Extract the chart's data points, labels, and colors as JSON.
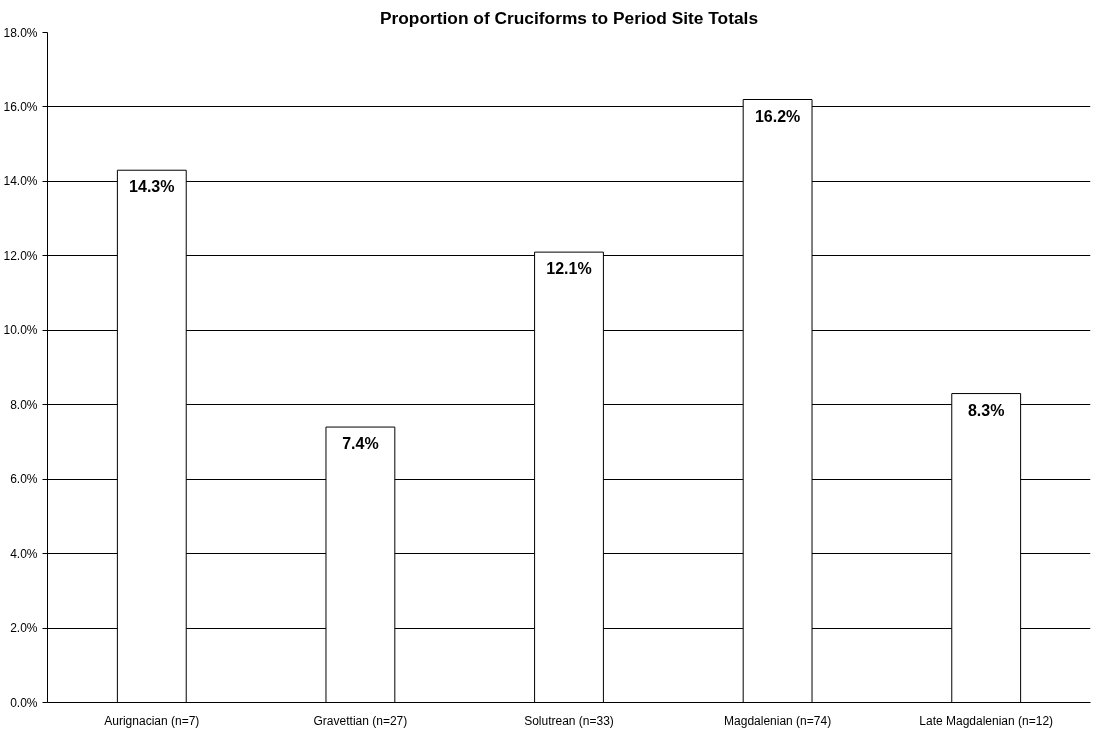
{
  "chart_data": {
    "type": "bar",
    "title": "Proportion of Cruciforms to Period Site Totals",
    "categories": [
      "Aurignacian (n=7)",
      "Gravettian (n=27)",
      "Solutrean (n=33)",
      "Magdalenian (n=74)",
      "Late Magdalenian (n=12)"
    ],
    "values": [
      14.3,
      7.4,
      12.1,
      16.2,
      8.3
    ],
    "value_labels": [
      "14.3%",
      "7.4%",
      "12.1%",
      "16.2%",
      "8.3%"
    ],
    "color": "#ffffff",
    "ylim": [
      0,
      18
    ],
    "yticks": [
      {
        "value": 0,
        "label": "0.0%"
      },
      {
        "value": 2,
        "label": "2.0%"
      },
      {
        "value": 4,
        "label": "4.0%"
      },
      {
        "value": 6,
        "label": "6.0%"
      },
      {
        "value": 8,
        "label": "8.0%"
      },
      {
        "value": 10,
        "label": "10.0%"
      },
      {
        "value": 12,
        "label": "12.0%"
      },
      {
        "value": 14,
        "label": "14.0%"
      },
      {
        "value": 16,
        "label": "16.0%"
      },
      {
        "value": 18,
        "label": "18.0%"
      }
    ],
    "grid": "y"
  }
}
